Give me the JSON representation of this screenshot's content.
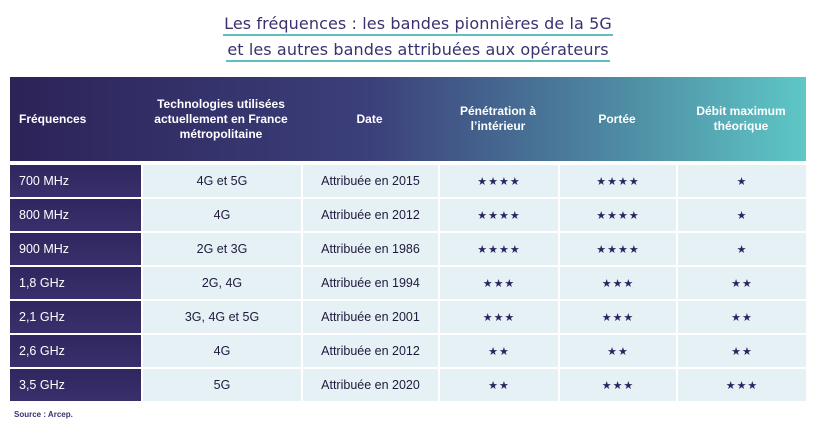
{
  "title": {
    "line1": "Les fréquences : les bandes pionnières de la 5G",
    "line2": "et les autres bandes attribuées aux opérateurs"
  },
  "table": {
    "headers": [
      "Fréquences",
      "Technologies utilisées actuellement en France métropolitaine",
      "Date",
      "Pénétration à l’intérieur",
      "Portée",
      "Débit maximum théorique"
    ],
    "rows": [
      [
        "700 MHz",
        "4G et 5G",
        "Attribuée en 2015",
        "★★★★",
        "★★★★",
        "★"
      ],
      [
        "800 MHz",
        "4G",
        "Attribuée en 2012",
        "★★★★",
        "★★★★",
        "★"
      ],
      [
        "900 MHz",
        "2G et 3G",
        "Attribuée en 1986",
        "★★★★",
        "★★★★",
        "★"
      ],
      [
        "1,8 GHz",
        "2G, 4G",
        "Attribuée en 1994",
        "★★★",
        "★★★",
        "★★"
      ],
      [
        "2,1 GHz",
        "3G, 4G et 5G",
        "Attribuée en 2001",
        "★★★",
        "★★★",
        "★★"
      ],
      [
        "2,6 GHz",
        "4G",
        "Attribuée en 2012",
        "★★",
        "★★",
        "★★"
      ],
      [
        "3,5 GHz",
        "5G",
        "Attribuée en 2020",
        "★★",
        "★★★",
        "★★★"
      ]
    ]
  },
  "source": "Source : Arcep.",
  "colors": {
    "header_start": "#2c2358",
    "header_end": "#5ec7c6",
    "row_bg": "#e6f1f5",
    "first_col_bg": "#2f275f",
    "title_underline": "#5ebfbf"
  }
}
